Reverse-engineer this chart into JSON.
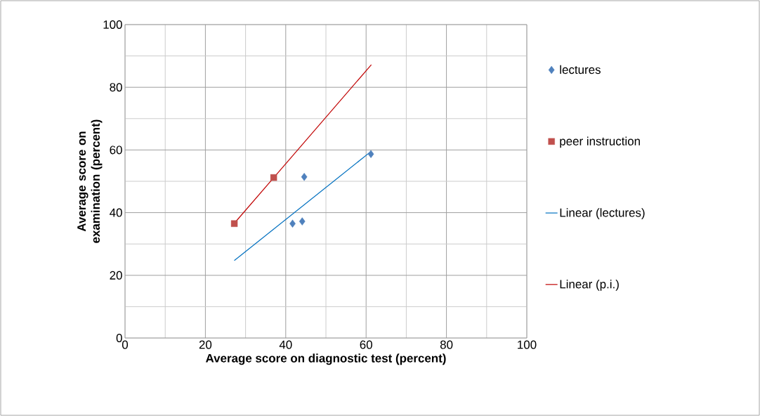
{
  "chart_data": {
    "type": "scatter",
    "xlabel": "Average score on diagnostic test (percent)",
    "ylabel": "Average score on examination (percent)",
    "xlim": [
      0,
      100
    ],
    "ylim": [
      0,
      100
    ],
    "xticks": [
      0,
      20,
      40,
      60,
      80,
      100
    ],
    "yticks": [
      0,
      20,
      40,
      60,
      80,
      100
    ],
    "grid": true,
    "legend": "right",
    "series": [
      {
        "name": "lectures",
        "type": "scatter",
        "marker": "diamond",
        "color": "#4f81bd",
        "x": [
          41.7,
          44.1,
          44.6,
          61.2
        ],
        "values": [
          36.5,
          37.2,
          51.4,
          58.7
        ]
      },
      {
        "name": "peer instruction",
        "type": "scatter",
        "marker": "square",
        "color": "#c0504d",
        "x": [
          27.2,
          37.0
        ],
        "values": [
          36.5,
          51.2
        ]
      },
      {
        "name": "Linear (lectures)",
        "type": "line",
        "marker": "none",
        "color": "#0070c0",
        "x": [
          27.2,
          61.2
        ],
        "values": [
          24.7,
          59.5
        ]
      },
      {
        "name": "Linear (p.i.)",
        "type": "line",
        "marker": "none",
        "color": "#c00000",
        "x": [
          27.2,
          61.3
        ],
        "values": [
          36.6,
          87.2
        ]
      }
    ]
  }
}
